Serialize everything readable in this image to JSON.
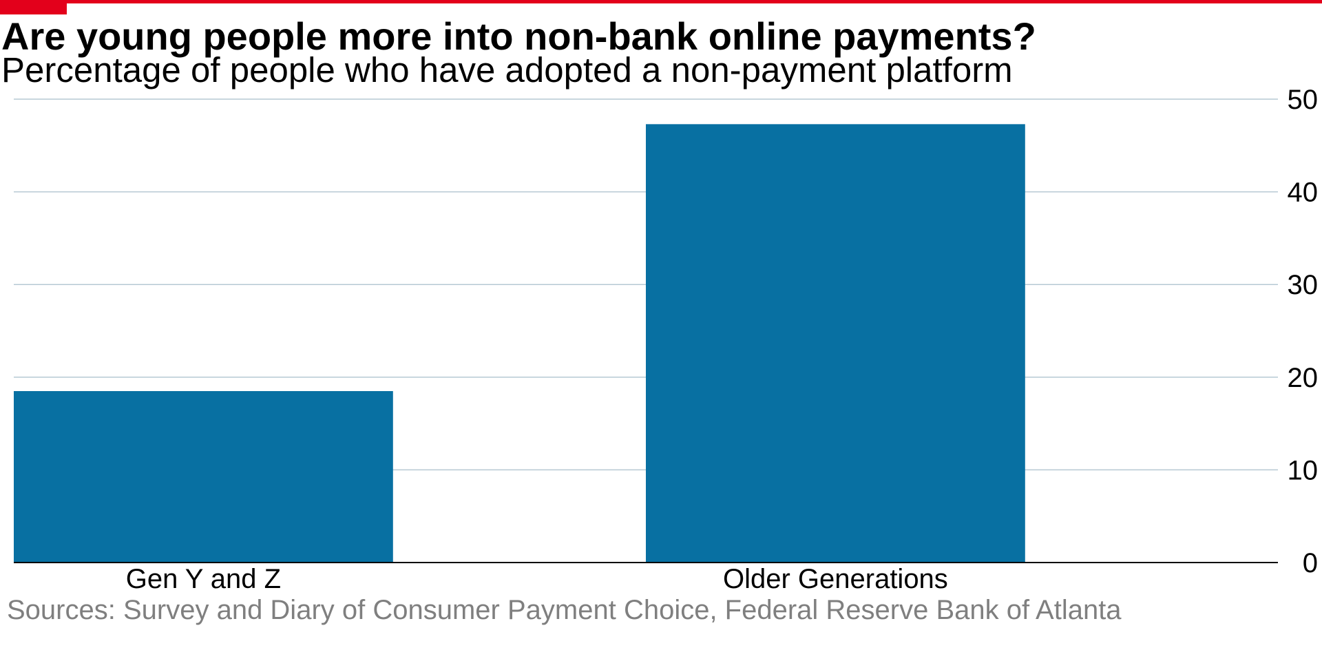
{
  "colors": {
    "accent": "#e3001b",
    "bar": "#0870a2",
    "grid": "#b6c9d3",
    "axis": "#000000",
    "text": "#000000",
    "source": "#7f7f7f"
  },
  "header": {
    "title": "Are young people more into non-bank online payments?",
    "subtitle": "Percentage of people who have adopted a non-payment platform"
  },
  "footer": {
    "source": "Sources: Survey and Diary of Consumer Payment Choice, Federal Reserve Bank of Atlanta"
  },
  "chart_data": {
    "type": "bar",
    "categories": [
      "Gen Y and Z",
      "Older Generations"
    ],
    "values": [
      18.5,
      47.3
    ],
    "title": "Are young people more into non-bank online payments?",
    "subtitle": "Percentage of people who have adopted a non-payment platform",
    "xlabel": "",
    "ylabel": "",
    "ylim": [
      0,
      50
    ],
    "yticks": [
      0,
      10,
      20,
      30,
      40,
      50
    ],
    "grid": true,
    "legend": "none",
    "y_axis_position": "right"
  }
}
